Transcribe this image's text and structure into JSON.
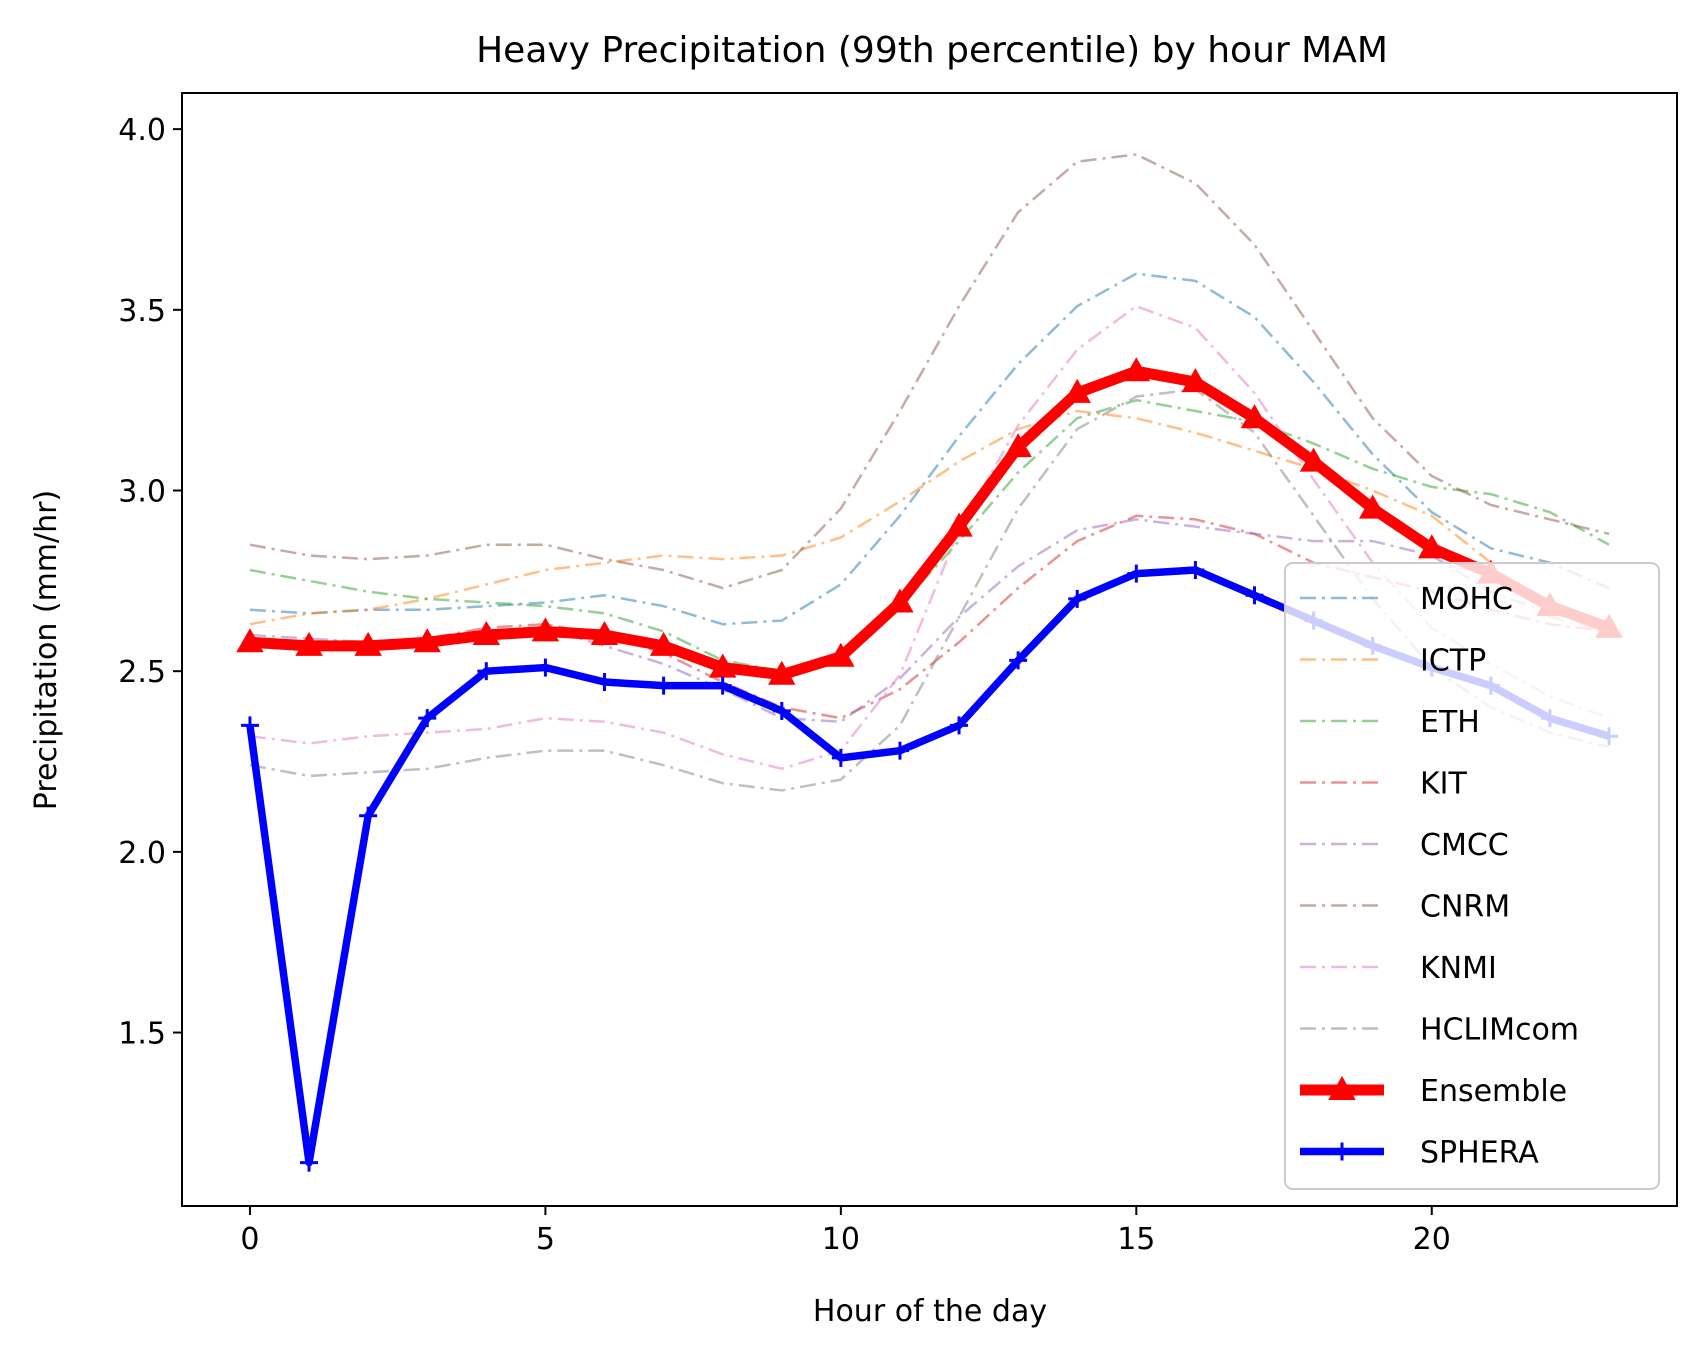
{
  "chart_data": {
    "type": "line",
    "title": "Heavy Precipitation (99th percentile) by hour MAM",
    "xlabel": "Hour of the day",
    "ylabel": "Precipitation (mm/hr)",
    "xlim": [
      -1.15,
      24.15
    ],
    "ylim": [
      1.02,
      4.1
    ],
    "xticks": [
      0,
      5,
      10,
      15,
      20
    ],
    "yticks": [
      1.5,
      2.0,
      2.5,
      3.0,
      3.5,
      4.0
    ],
    "xtick_labels": [
      "0",
      "5",
      "10",
      "15",
      "20"
    ],
    "ytick_labels": [
      "1.5",
      "2.0",
      "2.5",
      "3.0",
      "3.5",
      "4.0"
    ],
    "grid": false,
    "legend_position": "lower right",
    "x": [
      0,
      1,
      2,
      3,
      4,
      5,
      6,
      7,
      8,
      9,
      10,
      11,
      12,
      13,
      14,
      15,
      16,
      17,
      18,
      19,
      20,
      21,
      22,
      23
    ],
    "series": [
      {
        "name": "MOHC",
        "color": "#1f77b4",
        "style": "dashdot",
        "opacity": 0.5,
        "width": 2.5,
        "marker": "none",
        "values": [
          2.67,
          2.66,
          2.67,
          2.67,
          2.68,
          2.69,
          2.71,
          2.68,
          2.63,
          2.64,
          2.74,
          2.93,
          3.15,
          3.35,
          3.51,
          3.6,
          3.58,
          3.48,
          3.3,
          3.1,
          2.94,
          2.84,
          2.8,
          2.73
        ]
      },
      {
        "name": "ICTP",
        "color": "#ff7f0e",
        "style": "dashdot",
        "opacity": 0.5,
        "width": 2.5,
        "marker": "none",
        "values": [
          2.63,
          2.66,
          2.67,
          2.7,
          2.74,
          2.78,
          2.8,
          2.82,
          2.81,
          2.82,
          2.87,
          2.97,
          3.08,
          3.17,
          3.22,
          3.2,
          3.16,
          3.11,
          3.06,
          3.0,
          2.93,
          2.8,
          2.65,
          2.61
        ]
      },
      {
        "name": "ETH",
        "color": "#2ca02c",
        "style": "dashdot",
        "opacity": 0.5,
        "width": 2.5,
        "marker": "none",
        "values": [
          2.78,
          2.75,
          2.72,
          2.7,
          2.69,
          2.68,
          2.66,
          2.61,
          2.53,
          2.5,
          2.55,
          2.68,
          2.86,
          3.05,
          3.2,
          3.25,
          3.22,
          3.19,
          3.13,
          3.06,
          3.01,
          2.99,
          2.94,
          2.85
        ]
      },
      {
        "name": "KIT",
        "color": "#d62728",
        "style": "dashdot",
        "opacity": 0.5,
        "width": 2.5,
        "marker": "none",
        "values": [
          2.59,
          2.58,
          2.58,
          2.59,
          2.62,
          2.63,
          2.6,
          2.55,
          2.47,
          2.4,
          2.37,
          2.45,
          2.58,
          2.73,
          2.86,
          2.93,
          2.92,
          2.88,
          2.8,
          2.76,
          2.72,
          2.67,
          2.63,
          2.61
        ]
      },
      {
        "name": "CMCC",
        "color": "#9467bd",
        "style": "dashdot",
        "opacity": 0.5,
        "width": 2.5,
        "marker": "none",
        "values": [
          2.6,
          2.59,
          2.58,
          2.59,
          2.61,
          2.62,
          2.57,
          2.52,
          2.45,
          2.37,
          2.36,
          2.48,
          2.65,
          2.79,
          2.89,
          2.92,
          2.9,
          2.88,
          2.86,
          2.86,
          2.82,
          2.72,
          2.66,
          2.62
        ]
      },
      {
        "name": "CNRM",
        "color": "#8c564b",
        "style": "dashdot",
        "opacity": 0.5,
        "width": 2.5,
        "marker": "none",
        "values": [
          2.85,
          2.82,
          2.81,
          2.82,
          2.85,
          2.85,
          2.81,
          2.78,
          2.73,
          2.78,
          2.95,
          3.22,
          3.51,
          3.77,
          3.91,
          3.93,
          3.85,
          3.68,
          3.44,
          3.2,
          3.04,
          2.96,
          2.92,
          2.88
        ]
      },
      {
        "name": "KNMI",
        "color": "#e377c2",
        "style": "dashdot",
        "opacity": 0.5,
        "width": 2.5,
        "marker": "none",
        "values": [
          2.32,
          2.3,
          2.32,
          2.33,
          2.34,
          2.37,
          2.36,
          2.33,
          2.27,
          2.23,
          2.28,
          2.49,
          2.89,
          3.18,
          3.39,
          3.51,
          3.45,
          3.27,
          3.03,
          2.8,
          2.62,
          2.52,
          2.43,
          2.37
        ]
      },
      {
        "name": "HCLIMcom",
        "color": "#7f7f7f",
        "style": "dashdot",
        "opacity": 0.5,
        "width": 2.5,
        "marker": "none",
        "values": [
          2.24,
          2.21,
          2.22,
          2.23,
          2.26,
          2.28,
          2.28,
          2.24,
          2.19,
          2.17,
          2.2,
          2.35,
          2.65,
          2.95,
          3.17,
          3.26,
          3.28,
          3.16,
          2.93,
          2.7,
          2.51,
          2.4,
          2.33,
          2.29
        ]
      },
      {
        "name": "Ensemble",
        "color": "#ff0000",
        "style": "solid",
        "opacity": 1,
        "width": 11,
        "marker": "triangle",
        "values": [
          2.58,
          2.57,
          2.57,
          2.58,
          2.6,
          2.61,
          2.6,
          2.57,
          2.51,
          2.49,
          2.54,
          2.69,
          2.9,
          3.12,
          3.27,
          3.33,
          3.3,
          3.2,
          3.08,
          2.95,
          2.84,
          2.77,
          2.68,
          2.62
        ]
      },
      {
        "name": "SPHERA",
        "color": "#0000ff",
        "style": "solid",
        "opacity": 1,
        "width": 7.5,
        "marker": "plus",
        "values": [
          2.35,
          1.14,
          2.1,
          2.37,
          2.5,
          2.51,
          2.47,
          2.46,
          2.46,
          2.39,
          2.26,
          2.28,
          2.35,
          2.53,
          2.7,
          2.77,
          2.78,
          2.71,
          2.64,
          2.57,
          2.51,
          2.46,
          2.37,
          2.32
        ]
      }
    ]
  }
}
